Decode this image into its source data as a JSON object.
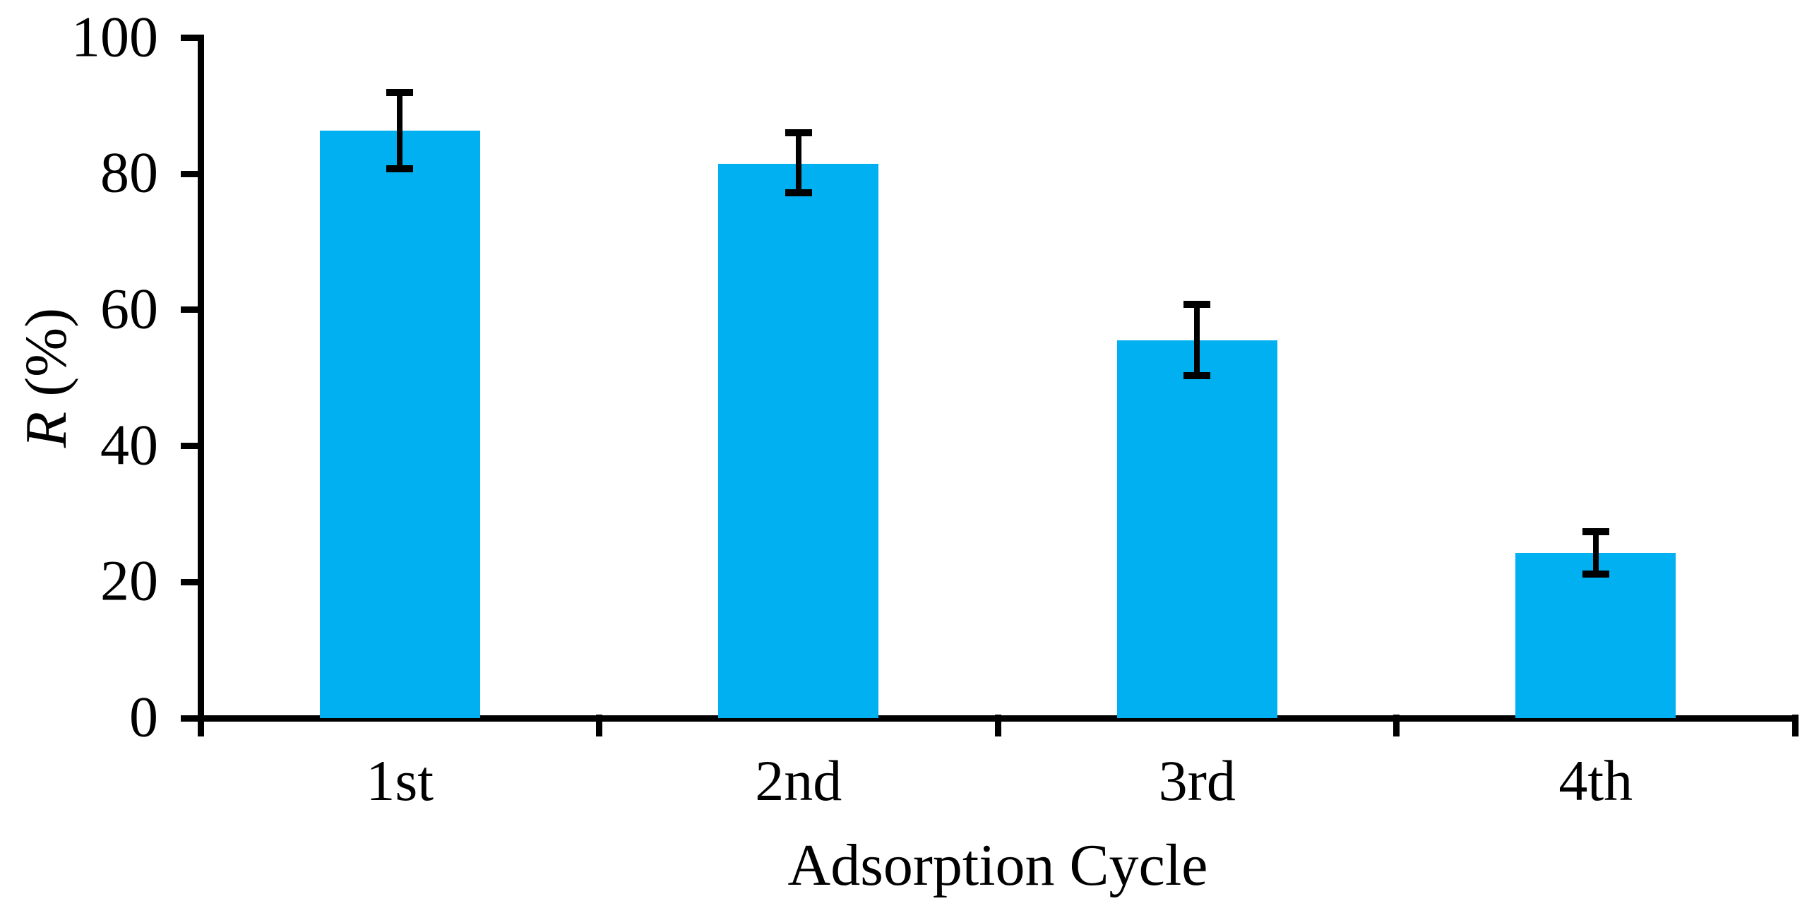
{
  "chart_data": {
    "type": "bar",
    "title": "",
    "categories": [
      "1st",
      "2nd",
      "3rd",
      "4th"
    ],
    "values": [
      86.3,
      81.5,
      55.5,
      24.3
    ],
    "error_bars": {
      "plus": [
        5.7,
        4.5,
        5.3,
        3.1
      ],
      "minus": [
        5.6,
        4.3,
        5.2,
        3.1
      ]
    },
    "xlabel": "Adsorption Cycle",
    "ylabel": "R (%)",
    "ylabel_italic_part": "R",
    "ylabel_rest_part": " (%)",
    "ylim": [
      0,
      100
    ],
    "yticks": [
      0,
      20,
      40,
      60,
      80,
      100
    ],
    "ytick_labels": [
      "0",
      "20",
      "40",
      "60",
      "80",
      "100"
    ],
    "grid": false,
    "legend": null,
    "bar_color": "#00B0F0",
    "axis_color": "#000000",
    "text_color": "#000000",
    "background_color": "#FFFFFF"
  }
}
